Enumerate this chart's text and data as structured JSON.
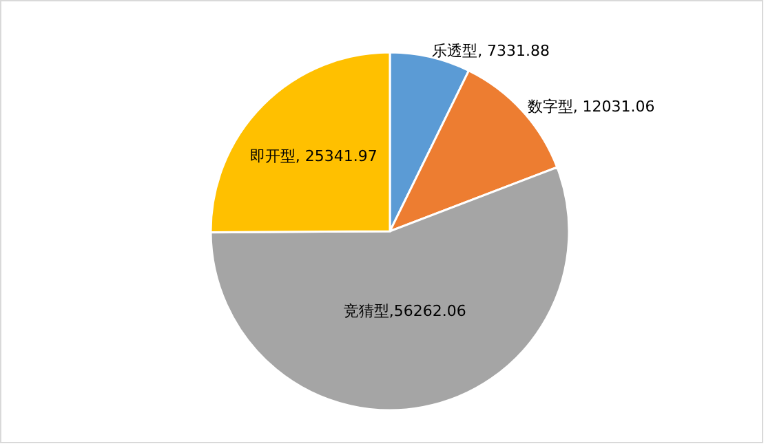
{
  "chart_data": {
    "type": "pie",
    "categories": [
      "乐透型",
      "数字型",
      "竞猜型",
      "即开型"
    ],
    "values": [
      7331.88,
      12031.06,
      56262.06,
      25341.97
    ],
    "colors": [
      "#5b9bd5",
      "#ed7d31",
      "#a5a5a5",
      "#ffc000"
    ],
    "value_labels": [
      ", 7331.88",
      ", 12031.06",
      ",56262.06",
      ", 25341.97"
    ]
  }
}
